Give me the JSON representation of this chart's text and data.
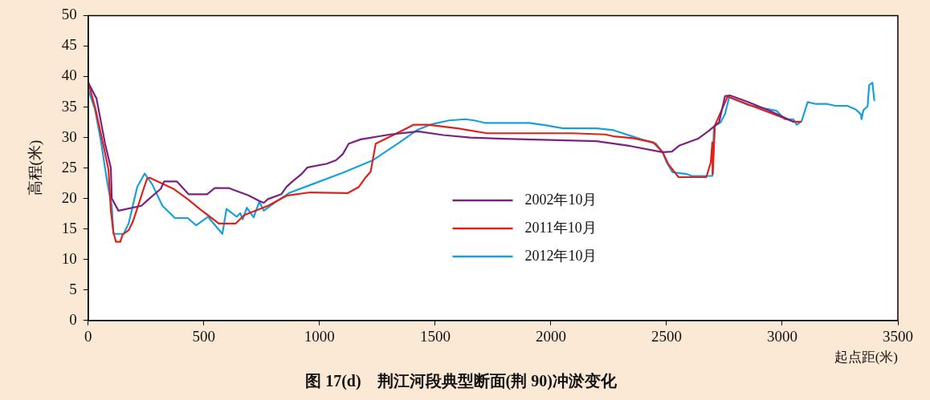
{
  "chart_data": {
    "type": "line",
    "title": "图 17(d)    荆江河段典型断面(荆 90)冲淤变化",
    "xlabel": "起点距(米)",
    "ylabel": "高程(米)",
    "xlim": [
      0,
      3500
    ],
    "xticks": [
      0,
      500,
      1000,
      1500,
      2000,
      2500,
      3000,
      3500
    ],
    "ylim": [
      0,
      50
    ],
    "yticks": [
      0,
      5,
      10,
      15,
      20,
      25,
      30,
      35,
      40,
      45,
      50
    ],
    "grid": false,
    "legend": "bottom",
    "marker": "none",
    "line_style": "solid",
    "series": [
      {
        "name": "2002年10月",
        "color": "#7b2181",
        "x": [
          0,
          36,
          73,
          98,
          102,
          131,
          230,
          259,
          314,
          328,
          383,
          434,
          514,
          547,
          609,
          693,
          740,
          759,
          777,
          835,
          857,
          886,
          922,
          948,
          1032,
          1072,
          1101,
          1126,
          1178,
          1305,
          1425,
          1535,
          1652,
          1797,
          2198,
          2271,
          2344,
          2483,
          2523,
          2556,
          2636,
          2683,
          2727,
          2753,
          2774,
          2855,
          2950,
          3048
        ],
        "values": [
          39,
          36.4,
          29,
          25,
          20,
          18,
          18.8,
          19.8,
          21.6,
          22.8,
          22.8,
          20.7,
          20.7,
          21.7,
          21.7,
          20.5,
          19.6,
          19.3,
          19.9,
          20.7,
          21.9,
          22.9,
          24,
          25.1,
          25.7,
          26.3,
          27.3,
          29,
          29.7,
          30.5,
          31,
          30.4,
          30,
          29.8,
          29.4,
          29,
          28.6,
          27.6,
          27.7,
          28.7,
          29.8,
          31.1,
          32.5,
          36.8,
          36.9,
          35.8,
          34.3,
          32.6
        ]
      },
      {
        "name": "2011年10月",
        "color": "#e0201b",
        "x": [
          0,
          33,
          66,
          88,
          98,
          109,
          120,
          139,
          149,
          175,
          193,
          222,
          237,
          255,
          266,
          368,
          430,
          485,
          565,
          638,
          675,
          777,
          861,
          959,
          1123,
          1170,
          1196,
          1221,
          1243,
          1360,
          1407,
          1469,
          1597,
          1724,
          2089,
          2235,
          2271,
          2355,
          2443,
          2483,
          2508,
          2552,
          2672,
          2691,
          2698,
          2700,
          2709,
          2764,
          2855,
          3048,
          3081
        ],
        "values": [
          39.2,
          34.4,
          28.7,
          24.7,
          18,
          14.5,
          12.9,
          12.9,
          14.1,
          14.8,
          16.2,
          19.5,
          21.3,
          23.3,
          23.4,
          21.6,
          19.9,
          18.2,
          15.9,
          15.9,
          17.3,
          18.8,
          20.5,
          21,
          20.9,
          21.9,
          23.3,
          24.4,
          29,
          31.2,
          32.1,
          32.1,
          31.5,
          30.7,
          30.7,
          30.5,
          30.2,
          29.9,
          29.2,
          27.6,
          25.6,
          23.5,
          23.5,
          25.9,
          29.2,
          24,
          32,
          36.7,
          35.4,
          32.6,
          32.6
        ]
      },
      {
        "name": "2012年10月",
        "color": "#16a1dd",
        "x": [
          0,
          29,
          55,
          84,
          102,
          109,
          131,
          153,
          175,
          212,
          244,
          277,
          321,
          375,
          430,
          467,
          518,
          580,
          598,
          642,
          657,
          668,
          686,
          715,
          740,
          759,
          813,
          868,
          959,
          1105,
          1232,
          1342,
          1425,
          1487,
          1560,
          1630,
          1670,
          1714,
          1907,
          1980,
          2053,
          2198,
          2271,
          2392,
          2454,
          2483,
          2501,
          2526,
          2588,
          2610,
          2698,
          2705,
          2734,
          2753,
          2771,
          2855,
          2975,
          3011,
          3048,
          3063,
          3084,
          3110,
          3146,
          3194,
          3230,
          3281,
          3318,
          3340,
          3343,
          3351,
          3369,
          3376,
          3390,
          3398
        ],
        "values": [
          37.9,
          34.7,
          29.4,
          22.3,
          18.8,
          14.2,
          14.2,
          14.2,
          15.9,
          21.9,
          24.1,
          22.3,
          18.8,
          16.8,
          16.8,
          15.6,
          17,
          14.2,
          18.3,
          17,
          17.6,
          16.6,
          18.5,
          16.9,
          19.5,
          18,
          19.5,
          20.9,
          22.2,
          24.3,
          26.3,
          29.1,
          31.3,
          32.2,
          32.8,
          33,
          32.8,
          32.4,
          32.4,
          32,
          31.5,
          31.5,
          31.2,
          29.7,
          29,
          27.6,
          25.9,
          24.3,
          24,
          23.7,
          23.7,
          31.8,
          32.5,
          33.9,
          36.6,
          35.3,
          34.4,
          33,
          33,
          32.1,
          32.7,
          35.8,
          35.5,
          35.5,
          35.2,
          35.2,
          34.6,
          33.8,
          33,
          34.5,
          35.1,
          38.6,
          39,
          36.1
        ]
      }
    ]
  }
}
